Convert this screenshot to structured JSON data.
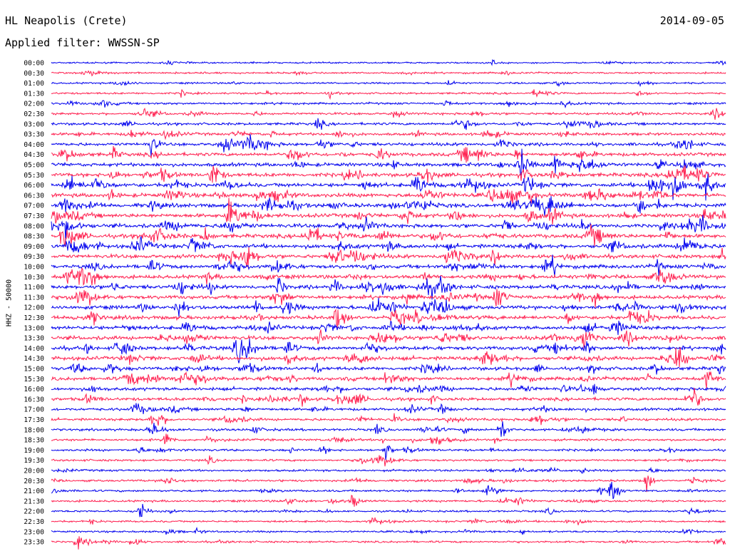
{
  "header": {
    "station": "HL Neapolis (Crete)",
    "date": "2014-09-05",
    "filter": "Applied filter: WWSSN-SP"
  },
  "chart_data": {
    "type": "line",
    "title": "HL Neapolis (Crete)",
    "subtitle": "Applied filter: WWSSN-SP",
    "ylabel": "HHZ - 50000",
    "row_labels": [
      "00:00",
      "00:30",
      "01:00",
      "01:30",
      "02:00",
      "02:30",
      "03:00",
      "03:30",
      "04:00",
      "04:30",
      "05:00",
      "05:30",
      "06:00",
      "06:30",
      "07:00",
      "07:30",
      "08:00",
      "08:30",
      "09:00",
      "09:30",
      "10:00",
      "10:30",
      "11:00",
      "11:30",
      "12:00",
      "12:30",
      "13:00",
      "13:30",
      "14:00",
      "14:30",
      "15:00",
      "15:30",
      "16:00",
      "16:30",
      "17:00",
      "17:30",
      "18:00",
      "18:30",
      "19:00",
      "19:30",
      "20:00",
      "20:30",
      "21:00",
      "21:30",
      "22:00",
      "22:30",
      "23:00",
      "23:30"
    ],
    "row_activity": [
      0.15,
      0.2,
      0.2,
      0.25,
      0.3,
      0.35,
      0.45,
      0.5,
      0.6,
      0.7,
      0.75,
      0.8,
      0.85,
      0.85,
      0.85,
      0.85,
      0.85,
      0.85,
      0.85,
      0.8,
      0.8,
      0.8,
      0.8,
      0.8,
      0.8,
      0.8,
      0.8,
      0.8,
      0.8,
      0.8,
      0.7,
      0.7,
      0.65,
      0.6,
      0.5,
      0.45,
      0.4,
      0.35,
      0.35,
      0.3,
      0.3,
      0.3,
      0.3,
      0.3,
      0.25,
      0.25,
      0.25,
      0.25
    ],
    "series_colors": [
      "#0000ee",
      "#ff1f4f"
    ],
    "grid": false
  }
}
